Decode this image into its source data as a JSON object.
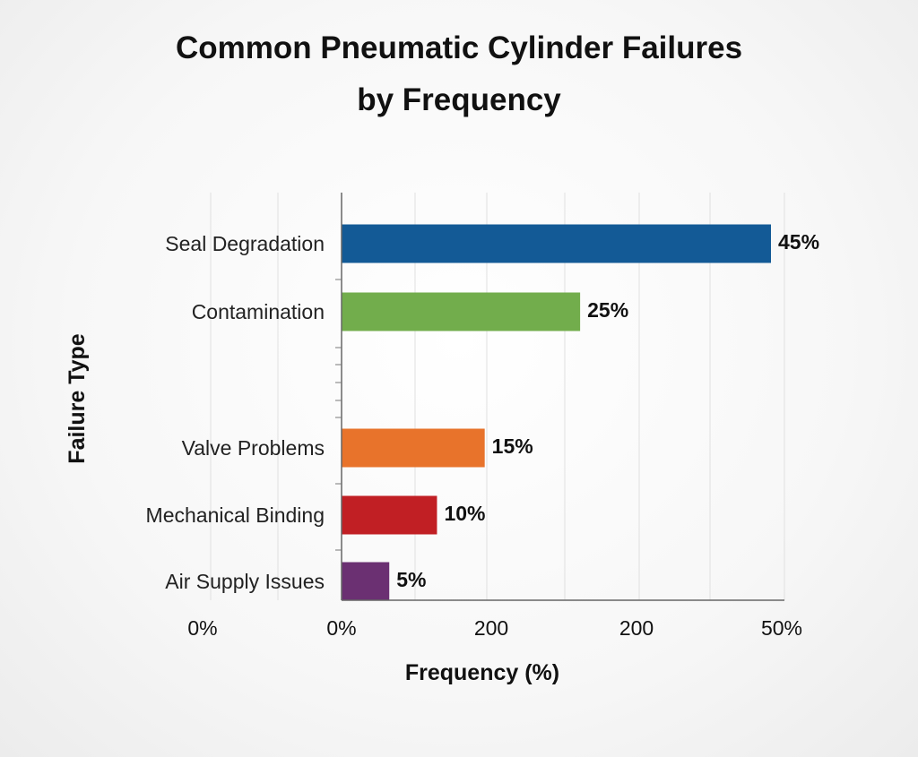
{
  "chart_data": {
    "type": "bar",
    "orientation": "horizontal",
    "title_lines": [
      "Common Pneumatic Cylinder Failures",
      "by Frequency"
    ],
    "xlabel": "Frequency (%)",
    "ylabel": "Failure Type",
    "categories": [
      "Seal Degradation",
      "Contamination",
      "Valve Problems",
      "Mechanical Binding",
      "Air Supply Issues"
    ],
    "values": [
      45,
      25,
      15,
      10,
      5
    ],
    "value_labels": [
      "45%",
      "25%",
      "15%",
      "10%",
      "5%"
    ],
    "colors": [
      "#135a96",
      "#72ad4c",
      "#e8732b",
      "#c11f24",
      "#6b3072"
    ],
    "x_tick_labels": [
      "0%",
      "0%",
      "200",
      "200",
      "50%"
    ],
    "grid": "vertical",
    "legend": "none"
  }
}
